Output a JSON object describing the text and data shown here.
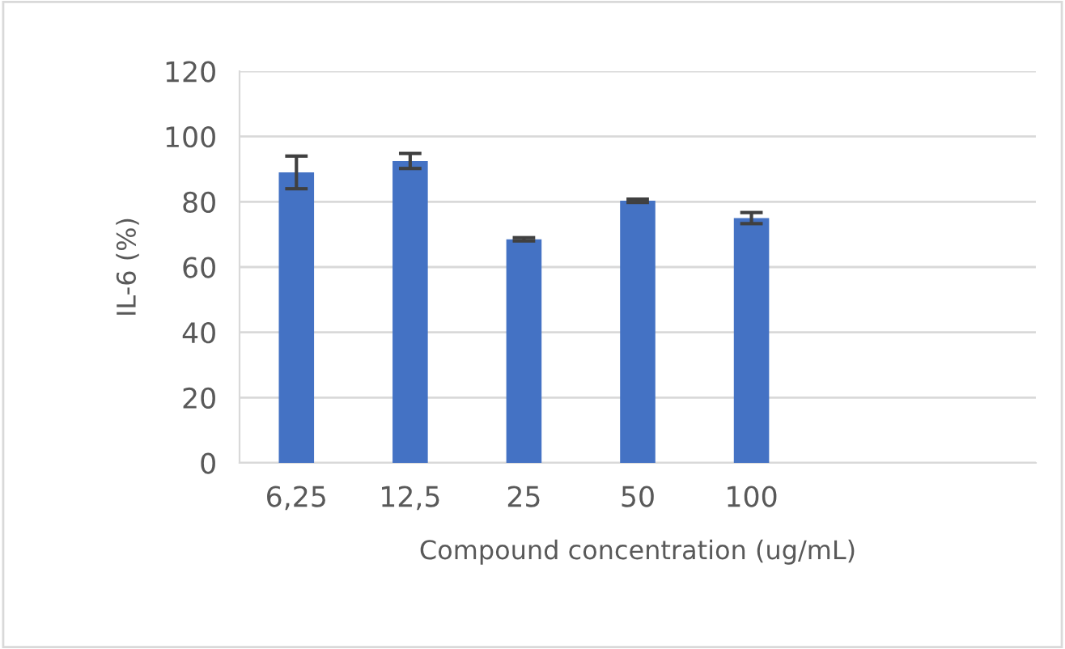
{
  "chart_data": {
    "type": "bar",
    "xlabel": "Compound concentration (ug/mL)",
    "ylabel": "IL-6 (%)",
    "categories": [
      "6,25",
      "12,5",
      "25",
      "50",
      "100",
      null,
      null
    ],
    "values": [
      89,
      92.5,
      68.5,
      80.3,
      75,
      null,
      null
    ],
    "errors": [
      5,
      2.3,
      0.5,
      0.5,
      1.7,
      null,
      null
    ],
    "color": "#4472c4",
    "ylim": [
      0,
      120
    ],
    "yticks": [
      0,
      20,
      40,
      60,
      80,
      100,
      120
    ],
    "grid": "y"
  }
}
